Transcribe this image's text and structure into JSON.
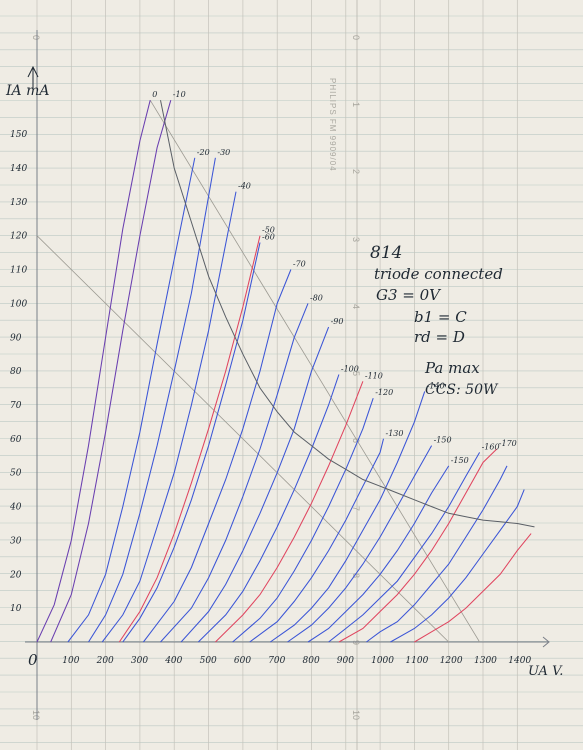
{
  "printed": {
    "brand": "PHILIPS FM 9909/04",
    "scale_marks": [
      "0",
      "1",
      "2",
      "3",
      "4",
      "5",
      "6",
      "7",
      "8",
      "9",
      "10"
    ]
  },
  "notes": {
    "title": "814",
    "line1": "triode connected",
    "line2": "G3 = 0V",
    "line3": "b1  =  C",
    "line4": "rd  =  D",
    "line5": "Pa max",
    "line6": "CCS: 50W",
    "origin": "0"
  },
  "colors": {
    "paper": "#efece4",
    "ink": "#1f2933",
    "blue": "#3b55d6",
    "red": "#e0455f",
    "purple": "#6a3fb0",
    "pencil": "#9c9a92"
  },
  "chart_data": {
    "type": "line",
    "xlabel": "UA V.",
    "ylabel": "IA mA",
    "xlim": [
      0,
      1450
    ],
    "ylim": [
      0,
      160
    ],
    "x_ticks": [
      "100",
      "200",
      "300",
      "400",
      "500",
      "600",
      "700",
      "800",
      "900",
      "1000",
      "1100",
      "1200",
      "1300",
      "1400"
    ],
    "y_ticks": [
      "10",
      "20",
      "30",
      "40",
      "50",
      "60",
      "70",
      "80",
      "90",
      "100",
      "110",
      "120",
      "130",
      "140",
      "150"
    ],
    "grid": true,
    "series": [
      {
        "name": "0",
        "color": "purple",
        "points": [
          [
            0,
            0
          ],
          [
            50,
            11
          ],
          [
            100,
            30
          ],
          [
            150,
            58
          ],
          [
            200,
            90
          ],
          [
            250,
            122
          ],
          [
            300,
            148
          ],
          [
            330,
            160
          ]
        ]
      },
      {
        "name": "-10",
        "color": "purple",
        "points": [
          [
            40,
            0
          ],
          [
            100,
            14
          ],
          [
            150,
            35
          ],
          [
            200,
            62
          ],
          [
            250,
            92
          ],
          [
            300,
            120
          ],
          [
            350,
            146
          ],
          [
            390,
            160
          ]
        ]
      },
      {
        "name": "-20",
        "color": "blue",
        "points": [
          [
            90,
            0
          ],
          [
            150,
            8
          ],
          [
            200,
            20
          ],
          [
            250,
            40
          ],
          [
            300,
            62
          ],
          [
            350,
            88
          ],
          [
            400,
            113
          ],
          [
            460,
            143
          ]
        ]
      },
      {
        "name": "-30",
        "color": "blue",
        "points": [
          [
            150,
            0
          ],
          [
            200,
            8
          ],
          [
            250,
            20
          ],
          [
            300,
            38
          ],
          [
            350,
            58
          ],
          [
            400,
            80
          ],
          [
            450,
            103
          ],
          [
            520,
            143
          ]
        ]
      },
      {
        "name": "-40",
        "color": "blue",
        "points": [
          [
            190,
            0
          ],
          [
            250,
            8
          ],
          [
            300,
            18
          ],
          [
            350,
            34
          ],
          [
            400,
            50
          ],
          [
            450,
            70
          ],
          [
            500,
            92
          ],
          [
            580,
            133
          ]
        ]
      },
      {
        "name": "-50",
        "color": "red",
        "points": [
          [
            240,
            0
          ],
          [
            300,
            9
          ],
          [
            350,
            19
          ],
          [
            400,
            32
          ],
          [
            450,
            47
          ],
          [
            500,
            63
          ],
          [
            550,
            80
          ],
          [
            600,
            99
          ],
          [
            650,
            120
          ]
        ]
      },
      {
        "name": "-50",
        "color": "blue",
        "points": [
          [
            250,
            0
          ],
          [
            300,
            7
          ],
          [
            350,
            16
          ],
          [
            400,
            28
          ],
          [
            450,
            42
          ],
          [
            500,
            58
          ],
          [
            550,
            76
          ],
          [
            600,
            95
          ],
          [
            650,
            118
          ]
        ]
      },
      {
        "name": "-60",
        "color": "blue",
        "points": [
          [
            310,
            0
          ],
          [
            400,
            12
          ],
          [
            450,
            22
          ],
          [
            500,
            35
          ],
          [
            550,
            48
          ],
          [
            600,
            63
          ],
          [
            650,
            80
          ],
          [
            700,
            100
          ],
          [
            740,
            110
          ]
        ]
      },
      {
        "name": "-70",
        "color": "blue",
        "points": [
          [
            360,
            0
          ],
          [
            450,
            10
          ],
          [
            500,
            19
          ],
          [
            550,
            30
          ],
          [
            600,
            43
          ],
          [
            650,
            57
          ],
          [
            700,
            73
          ],
          [
            750,
            90
          ],
          [
            790,
            100
          ]
        ]
      },
      {
        "name": "-80",
        "color": "blue",
        "points": [
          [
            420,
            0
          ],
          [
            500,
            9
          ],
          [
            550,
            17
          ],
          [
            600,
            27
          ],
          [
            650,
            38
          ],
          [
            700,
            50
          ],
          [
            750,
            63
          ],
          [
            800,
            80
          ],
          [
            850,
            93
          ]
        ]
      },
      {
        "name": "-90",
        "color": "blue",
        "points": [
          [
            470,
            0
          ],
          [
            550,
            8
          ],
          [
            600,
            15
          ],
          [
            650,
            24
          ],
          [
            700,
            34
          ],
          [
            750,
            45
          ],
          [
            800,
            57
          ],
          [
            850,
            70
          ],
          [
            880,
            79
          ]
        ]
      },
      {
        "name": "-100",
        "color": "red",
        "points": [
          [
            520,
            0
          ],
          [
            600,
            8
          ],
          [
            650,
            14
          ],
          [
            700,
            22
          ],
          [
            750,
            31
          ],
          [
            800,
            41
          ],
          [
            850,
            52
          ],
          [
            900,
            64
          ],
          [
            950,
            77
          ]
        ]
      },
      {
        "name": "-100",
        "color": "blue",
        "points": [
          [
            570,
            0
          ],
          [
            650,
            7
          ],
          [
            700,
            13
          ],
          [
            750,
            21
          ],
          [
            800,
            30
          ],
          [
            850,
            40
          ],
          [
            900,
            51
          ],
          [
            950,
            63
          ],
          [
            980,
            72
          ]
        ]
      },
      {
        "name": "-110",
        "color": "blue",
        "points": [
          [
            620,
            0
          ],
          [
            700,
            6
          ],
          [
            750,
            12
          ],
          [
            800,
            19
          ],
          [
            850,
            27
          ],
          [
            900,
            36
          ],
          [
            950,
            46
          ],
          [
            1000,
            56
          ],
          [
            1010,
            60
          ]
        ]
      },
      {
        "name": "-120",
        "color": "blue",
        "points": [
          [
            680,
            0
          ],
          [
            750,
            5
          ],
          [
            800,
            10
          ],
          [
            850,
            16
          ],
          [
            900,
            24
          ],
          [
            950,
            33
          ],
          [
            1000,
            42
          ],
          [
            1050,
            53
          ],
          [
            1100,
            65
          ],
          [
            1130,
            74
          ]
        ]
      },
      {
        "name": "-130",
        "color": "blue",
        "points": [
          [
            730,
            0
          ],
          [
            800,
            5
          ],
          [
            850,
            10
          ],
          [
            900,
            16
          ],
          [
            950,
            23
          ],
          [
            1000,
            31
          ],
          [
            1050,
            40
          ],
          [
            1100,
            49
          ],
          [
            1150,
            58
          ]
        ]
      },
      {
        "name": "-130",
        "color": "blue",
        "points": [
          [
            790,
            0
          ],
          [
            850,
            4
          ],
          [
            900,
            9
          ],
          [
            950,
            14
          ],
          [
            1000,
            20
          ],
          [
            1050,
            27
          ],
          [
            1100,
            35
          ],
          [
            1150,
            44
          ],
          [
            1200,
            52
          ]
        ]
      },
      {
        "name": "-140",
        "color": "blue",
        "points": [
          [
            850,
            0
          ],
          [
            900,
            4
          ],
          [
            950,
            8
          ],
          [
            1000,
            13
          ],
          [
            1050,
            18
          ],
          [
            1100,
            25
          ],
          [
            1150,
            32
          ],
          [
            1200,
            40
          ],
          [
            1250,
            49
          ],
          [
            1290,
            56
          ]
        ]
      },
      {
        "name": "-150",
        "color": "red",
        "points": [
          [
            880,
            0
          ],
          [
            950,
            4
          ],
          [
            1000,
            9
          ],
          [
            1050,
            14
          ],
          [
            1100,
            20
          ],
          [
            1150,
            27
          ],
          [
            1200,
            35
          ],
          [
            1250,
            44
          ],
          [
            1300,
            53
          ],
          [
            1340,
            57
          ]
        ]
      },
      {
        "name": "-150",
        "color": "blue",
        "points": [
          [
            960,
            0
          ],
          [
            1000,
            3
          ],
          [
            1050,
            6
          ],
          [
            1100,
            11
          ],
          [
            1150,
            17
          ],
          [
            1200,
            23
          ],
          [
            1250,
            31
          ],
          [
            1300,
            39
          ],
          [
            1350,
            48
          ],
          [
            1370,
            52
          ]
        ]
      },
      {
        "name": "-160",
        "color": "blue",
        "points": [
          [
            1030,
            0
          ],
          [
            1100,
            4
          ],
          [
            1150,
            8
          ],
          [
            1200,
            13
          ],
          [
            1250,
            19
          ],
          [
            1300,
            26
          ],
          [
            1350,
            33
          ],
          [
            1400,
            40
          ],
          [
            1420,
            45
          ]
        ]
      },
      {
        "name": "-170",
        "color": "red",
        "points": [
          [
            1100,
            0
          ],
          [
            1150,
            3
          ],
          [
            1200,
            6
          ],
          [
            1250,
            10
          ],
          [
            1300,
            15
          ],
          [
            1350,
            20
          ],
          [
            1400,
            27
          ],
          [
            1440,
            32
          ]
        ]
      }
    ],
    "curve_labels": [
      "0",
      "-10",
      "-20",
      "-30",
      "-40",
      "-50",
      "-60",
      "-70",
      "-80",
      "-90",
      "-100",
      "-110",
      "-120",
      "-130",
      "-140",
      "-150",
      "-150",
      "-160",
      "-170"
    ],
    "max_dissipation_curve": {
      "name": "Pa max",
      "points": [
        [
          360,
          160
        ],
        [
          400,
          140
        ],
        [
          450,
          124
        ],
        [
          500,
          108
        ],
        [
          550,
          96
        ],
        [
          600,
          85
        ],
        [
          650,
          75
        ],
        [
          700,
          68
        ],
        [
          750,
          62
        ],
        [
          800,
          58
        ],
        [
          850,
          54
        ],
        [
          900,
          51
        ],
        [
          950,
          48
        ],
        [
          1000,
          46
        ],
        [
          1050,
          44
        ],
        [
          1100,
          42
        ],
        [
          1150,
          40
        ],
        [
          1200,
          38
        ],
        [
          1250,
          37
        ],
        [
          1300,
          36
        ],
        [
          1350,
          35.5
        ],
        [
          1400,
          35
        ],
        [
          1450,
          34
        ]
      ]
    },
    "load_lines": [
      {
        "points": [
          [
            0,
            120
          ],
          [
            1200,
            0
          ]
        ]
      },
      {
        "points": [
          [
            330,
            160
          ],
          [
            1290,
            0
          ]
        ]
      }
    ]
  }
}
